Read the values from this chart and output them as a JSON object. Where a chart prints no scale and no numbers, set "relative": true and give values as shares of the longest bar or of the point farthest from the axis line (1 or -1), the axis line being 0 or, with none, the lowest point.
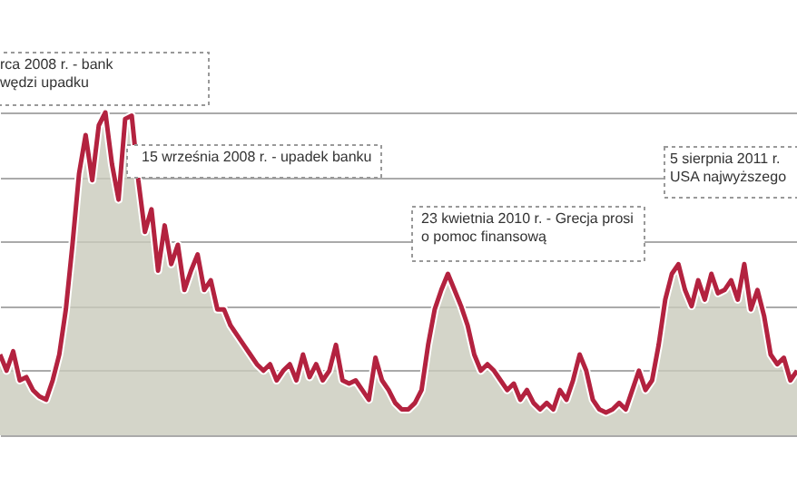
{
  "chart_data": {
    "type": "area",
    "relative": true,
    "grid": "y",
    "categories": [
      null,
      null,
      null,
      null,
      null,
      null,
      null,
      null,
      null,
      null,
      null,
      null,
      null,
      null,
      null,
      null,
      null,
      null,
      null,
      null,
      null,
      null,
      null,
      null,
      null,
      null,
      null,
      null,
      null,
      null,
      null,
      null,
      null,
      null,
      null,
      null,
      null,
      null,
      null,
      null,
      null,
      null,
      null,
      null,
      null,
      null,
      null,
      null,
      null,
      null,
      null,
      null,
      null,
      null,
      null,
      null,
      null,
      null,
      null,
      null,
      null,
      null,
      null,
      null,
      null,
      null,
      null,
      null,
      null,
      null,
      null,
      null,
      null,
      null,
      null,
      null,
      null,
      null,
      null,
      null,
      null,
      null,
      null,
      null,
      null,
      null,
      null,
      null,
      null,
      null,
      null,
      null,
      null,
      null,
      null,
      null,
      null,
      null,
      null,
      null,
      null,
      null,
      null,
      null,
      null,
      null,
      null,
      null,
      null,
      null,
      null,
      null,
      null,
      null,
      null,
      null,
      null,
      null,
      null,
      null,
      null,
      null
    ],
    "series": [
      {
        "color": "#b3223f",
        "values": [
          0.25,
          0.2,
          0.26,
          0.17,
          0.18,
          0.14,
          0.12,
          0.11,
          0.17,
          0.25,
          0.39,
          0.59,
          0.81,
          0.93,
          0.79,
          0.96,
          1.0,
          0.84,
          0.73,
          0.98,
          0.99,
          0.79,
          0.63,
          0.7,
          0.51,
          0.65,
          0.53,
          0.59,
          0.45,
          0.51,
          0.56,
          0.45,
          0.48,
          0.39,
          0.39,
          0.34,
          0.31,
          0.28,
          0.25,
          0.22,
          0.2,
          0.22,
          0.17,
          0.2,
          0.22,
          0.17,
          0.25,
          0.18,
          0.22,
          0.17,
          0.2,
          0.28,
          0.17,
          0.16,
          0.17,
          0.14,
          0.11,
          0.24,
          0.17,
          0.14,
          0.1,
          0.08,
          0.08,
          0.1,
          0.14,
          0.28,
          0.39,
          0.45,
          0.5,
          0.45,
          0.4,
          0.34,
          0.25,
          0.2,
          0.22,
          0.2,
          0.17,
          0.14,
          0.16,
          0.11,
          0.14,
          0.1,
          0.08,
          0.1,
          0.08,
          0.14,
          0.11,
          0.17,
          0.25,
          0.2,
          0.11,
          0.08,
          0.07,
          0.08,
          0.1,
          0.08,
          0.14,
          0.2,
          0.14,
          0.17,
          0.28,
          0.42,
          0.5,
          0.53,
          0.45,
          0.4,
          0.48,
          0.42,
          0.5,
          0.44,
          0.45,
          0.48,
          0.42,
          0.53,
          0.39,
          0.45,
          0.37,
          0.25,
          0.22,
          0.24,
          0.17,
          0.2
        ]
      }
    ],
    "annotations": [
      "rca 2008 r. - bank\nwędzi upadku",
      "15 września 2008 r. - upadek banku",
      "23 kwietnia 2010 r. - Grecja prosi\no pomoc finansową",
      "5 sierpnia 2011 r.\nUSA najwyższego"
    ]
  }
}
